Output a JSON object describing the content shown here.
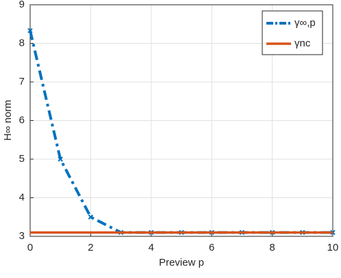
{
  "chart_data": {
    "type": "line",
    "x": [
      0,
      1,
      2,
      3,
      4,
      5,
      6,
      7,
      8,
      9,
      10
    ],
    "series": [
      {
        "name": "γ∞,p",
        "color": "#0072bd",
        "values": [
          8.33,
          5.0,
          3.5,
          3.1,
          3.1,
          3.1,
          3.1,
          3.1,
          3.1,
          3.1,
          3.1
        ]
      },
      {
        "name": "γnc",
        "color": "#d95319",
        "values": [
          3.1,
          3.1,
          3.1,
          3.1,
          3.1,
          3.1,
          3.1,
          3.1,
          3.1,
          3.1,
          3.1
        ]
      }
    ],
    "xlabel": "Preview p",
    "ylabel": "H∞ norm",
    "xlim": [
      0,
      10
    ],
    "ylim": [
      3,
      9
    ],
    "xticks": [
      0,
      2,
      4,
      6,
      8,
      10
    ],
    "yticks": [
      3,
      4,
      5,
      6,
      7,
      8,
      9
    ],
    "grid": true,
    "legend": "northeast"
  }
}
